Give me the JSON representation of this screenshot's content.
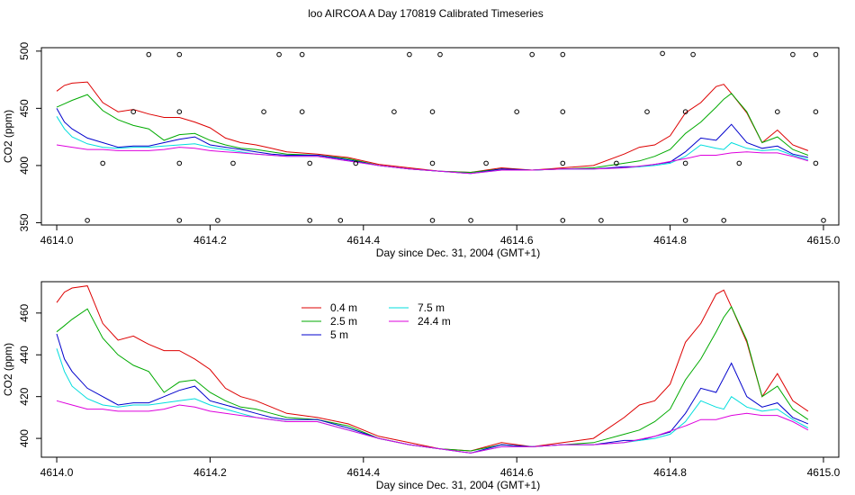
{
  "title": "loo AIRCOA A  Day 170819  Calibrated Timeseries",
  "colors": {
    "0.4 m": "#dd0000",
    "2.5 m": "#00aa00",
    "5 m": "#0000cc",
    "7.5 m": "#00dddd",
    "24.4 m": "#dd00dd"
  },
  "chart_data": [
    {
      "type": "line",
      "xlabel": "Day since Dec. 31, 2004 (GMT+1)",
      "ylabel": "CO2 (ppm)",
      "xlim": [
        4613.98,
        4615.02
      ],
      "ylim": [
        348,
        503
      ],
      "xticks": [
        "4614.0",
        "4614.2",
        "4614.4",
        "4614.6",
        "4614.8",
        "4615.0"
      ],
      "yticks": [
        "350",
        "400",
        "450",
        "500"
      ],
      "series": [
        {
          "name": "0.4 m",
          "x": [
            4614.0,
            4614.01,
            4614.02,
            4614.04,
            4614.06,
            4614.08,
            4614.1,
            4614.12,
            4614.14,
            4614.16,
            4614.18,
            4614.2,
            4614.22,
            4614.24,
            4614.26,
            4614.28,
            4614.3,
            4614.34,
            4614.38,
            4614.42,
            4614.46,
            4614.5,
            4614.54,
            4614.58,
            4614.62,
            4614.66,
            4614.7,
            4614.74,
            4614.76,
            4614.78,
            4614.8,
            4614.82,
            4614.84,
            4614.86,
            4614.87,
            4614.88,
            4614.9,
            4614.92,
            4614.94,
            4614.96,
            4614.98
          ],
          "y": [
            465,
            470,
            472,
            473,
            455,
            447,
            449,
            445,
            442,
            442,
            438,
            433,
            424,
            420,
            418,
            415,
            412,
            410,
            407,
            401,
            398,
            395,
            394,
            398,
            396,
            398,
            400,
            410,
            416,
            418,
            426,
            446,
            455,
            469,
            471,
            463,
            446,
            420,
            431,
            418,
            413
          ]
        },
        {
          "name": "2.5 m",
          "x": [
            4614.0,
            4614.01,
            4614.02,
            4614.04,
            4614.06,
            4614.08,
            4614.1,
            4614.12,
            4614.14,
            4614.16,
            4614.18,
            4614.2,
            4614.22,
            4614.24,
            4614.26,
            4614.28,
            4614.3,
            4614.34,
            4614.38,
            4614.42,
            4614.46,
            4614.5,
            4614.54,
            4614.58,
            4614.62,
            4614.66,
            4614.7,
            4614.74,
            4614.76,
            4614.78,
            4614.8,
            4614.82,
            4614.84,
            4614.86,
            4614.87,
            4614.88,
            4614.9,
            4614.92,
            4614.94,
            4614.96,
            4614.98
          ],
          "y": [
            451,
            454,
            457,
            462,
            448,
            440,
            435,
            432,
            422,
            427,
            428,
            422,
            418,
            415,
            414,
            412,
            410,
            409,
            406,
            400,
            397,
            395,
            394,
            397,
            396,
            397,
            398,
            402,
            404,
            408,
            414,
            428,
            438,
            451,
            458,
            463,
            447,
            420,
            425,
            414,
            409
          ]
        },
        {
          "name": "5 m",
          "x": [
            4614.0,
            4614.01,
            4614.02,
            4614.04,
            4614.06,
            4614.08,
            4614.1,
            4614.12,
            4614.14,
            4614.16,
            4614.18,
            4614.2,
            4614.22,
            4614.24,
            4614.26,
            4614.28,
            4614.3,
            4614.34,
            4614.38,
            4614.42,
            4614.46,
            4614.5,
            4614.54,
            4614.58,
            4614.62,
            4614.66,
            4614.7,
            4614.74,
            4614.76,
            4614.78,
            4614.8,
            4614.82,
            4614.84,
            4614.86,
            4614.87,
            4614.88,
            4614.9,
            4614.92,
            4614.94,
            4614.96,
            4614.98
          ],
          "y": [
            450,
            438,
            432,
            424,
            420,
            416,
            417,
            417,
            420,
            423,
            425,
            418,
            416,
            414,
            412,
            410,
            409,
            409,
            405,
            400,
            397,
            395,
            393,
            397,
            396,
            397,
            397,
            399,
            399,
            401,
            403,
            412,
            424,
            422,
            429,
            436,
            420,
            415,
            417,
            410,
            407
          ]
        },
        {
          "name": "7.5 m",
          "x": [
            4614.0,
            4614.01,
            4614.02,
            4614.04,
            4614.06,
            4614.08,
            4614.1,
            4614.12,
            4614.14,
            4614.16,
            4614.18,
            4614.2,
            4614.22,
            4614.24,
            4614.26,
            4614.28,
            4614.3,
            4614.34,
            4614.38,
            4614.42,
            4614.46,
            4614.5,
            4614.54,
            4614.58,
            4614.62,
            4614.66,
            4614.7,
            4614.74,
            4614.76,
            4614.78,
            4614.8,
            4614.82,
            4614.84,
            4614.86,
            4614.87,
            4614.88,
            4614.9,
            4614.92,
            4614.94,
            4614.96,
            4614.98
          ],
          "y": [
            443,
            432,
            425,
            419,
            416,
            415,
            416,
            416,
            417,
            418,
            419,
            416,
            414,
            412,
            410,
            409,
            408,
            408,
            404,
            400,
            397,
            395,
            393,
            396,
            396,
            397,
            397,
            398,
            399,
            400,
            402,
            408,
            418,
            415,
            414,
            420,
            415,
            413,
            414,
            409,
            405
          ]
        },
        {
          "name": "24.4 m",
          "x": [
            4614.0,
            4614.02,
            4614.04,
            4614.06,
            4614.08,
            4614.1,
            4614.12,
            4614.14,
            4614.16,
            4614.18,
            4614.2,
            4614.22,
            4614.24,
            4614.26,
            4614.28,
            4614.3,
            4614.34,
            4614.38,
            4614.42,
            4614.46,
            4614.5,
            4614.54,
            4614.58,
            4614.62,
            4614.66,
            4614.7,
            4614.74,
            4614.78,
            4614.82,
            4614.84,
            4614.86,
            4614.88,
            4614.9,
            4614.92,
            4614.94,
            4614.96,
            4614.98
          ],
          "y": [
            418,
            416,
            414,
            414,
            413,
            413,
            413,
            414,
            416,
            415,
            413,
            412,
            411,
            410,
            409,
            408,
            408,
            404,
            400,
            397,
            395,
            393,
            396,
            396,
            397,
            397,
            398,
            401,
            406,
            409,
            409,
            411,
            412,
            411,
            411,
            408,
            404
          ]
        }
      ],
      "markers": {
        "name": "out-of-range points",
        "x": [
          4614.04,
          4614.06,
          4614.1,
          4614.12,
          4614.16,
          4614.16,
          4614.16,
          4614.16,
          4614.21,
          4614.23,
          4614.27,
          4614.29,
          4614.32,
          4614.32,
          4614.33,
          4614.33,
          4614.37,
          4614.39,
          4614.44,
          4614.46,
          4614.49,
          4614.49,
          4614.49,
          4614.5,
          4614.54,
          4614.56,
          4614.6,
          4614.62,
          4614.66,
          4614.66,
          4614.66,
          4614.66,
          4614.71,
          4614.73,
          4614.77,
          4614.79,
          4614.82,
          4614.82,
          4614.82,
          4614.83,
          4614.87,
          4614.89,
          4614.94,
          4614.96,
          4614.99,
          4614.99,
          4614.99,
          4615.0
        ],
        "y": [
          352,
          402,
          447,
          497,
          352,
          402,
          447,
          497,
          352,
          402,
          447,
          497,
          497,
          447,
          402,
          352,
          352,
          402,
          447,
          497,
          352,
          402,
          447,
          497,
          352,
          402,
          447,
          497,
          352,
          402,
          447,
          497,
          352,
          402,
          447,
          498,
          352,
          402,
          447,
          497,
          352,
          402,
          447,
          497,
          497,
          447,
          402,
          352
        ]
      }
    },
    {
      "type": "line",
      "xlabel": "Day since Dec. 31, 2004 (GMT+1)",
      "ylabel": "CO2 (ppm)",
      "xlim": [
        4613.98,
        4615.02
      ],
      "ylim": [
        391,
        475
      ],
      "xticks": [
        "4614.0",
        "4614.2",
        "4614.4",
        "4614.6",
        "4614.8",
        "4615.0"
      ],
      "yticks": [
        "400",
        "420",
        "440",
        "460"
      ],
      "legend": {
        "placement": "top-center",
        "entries": [
          "0.4 m",
          "2.5 m",
          "5 m",
          "7.5 m",
          "24.4 m"
        ]
      },
      "series": [
        {
          "name": "0.4 m",
          "x": [
            4614.0,
            4614.01,
            4614.02,
            4614.04,
            4614.06,
            4614.08,
            4614.1,
            4614.12,
            4614.14,
            4614.16,
            4614.18,
            4614.2,
            4614.22,
            4614.24,
            4614.26,
            4614.28,
            4614.3,
            4614.34,
            4614.38,
            4614.42,
            4614.46,
            4614.5,
            4614.54,
            4614.58,
            4614.62,
            4614.66,
            4614.7,
            4614.74,
            4614.76,
            4614.78,
            4614.8,
            4614.82,
            4614.84,
            4614.86,
            4614.87,
            4614.88,
            4614.9,
            4614.92,
            4614.94,
            4614.96,
            4614.98
          ],
          "y": [
            465,
            470,
            472,
            473,
            455,
            447,
            449,
            445,
            442,
            442,
            438,
            433,
            424,
            420,
            418,
            415,
            412,
            410,
            407,
            401,
            398,
            395,
            394,
            398,
            396,
            398,
            400,
            410,
            416,
            418,
            426,
            446,
            455,
            469,
            471,
            463,
            446,
            420,
            431,
            418,
            413
          ]
        },
        {
          "name": "2.5 m",
          "x": [
            4614.0,
            4614.01,
            4614.02,
            4614.04,
            4614.06,
            4614.08,
            4614.1,
            4614.12,
            4614.14,
            4614.16,
            4614.18,
            4614.2,
            4614.22,
            4614.24,
            4614.26,
            4614.28,
            4614.3,
            4614.34,
            4614.38,
            4614.42,
            4614.46,
            4614.5,
            4614.54,
            4614.58,
            4614.62,
            4614.66,
            4614.7,
            4614.74,
            4614.76,
            4614.78,
            4614.8,
            4614.82,
            4614.84,
            4614.86,
            4614.87,
            4614.88,
            4614.9,
            4614.92,
            4614.94,
            4614.96,
            4614.98
          ],
          "y": [
            451,
            454,
            457,
            462,
            448,
            440,
            435,
            432,
            422,
            427,
            428,
            422,
            418,
            415,
            414,
            412,
            410,
            409,
            406,
            400,
            397,
            395,
            394,
            397,
            396,
            397,
            398,
            402,
            404,
            408,
            414,
            428,
            438,
            451,
            458,
            463,
            447,
            420,
            425,
            414,
            409
          ]
        },
        {
          "name": "5 m",
          "x": [
            4614.0,
            4614.01,
            4614.02,
            4614.04,
            4614.06,
            4614.08,
            4614.1,
            4614.12,
            4614.14,
            4614.16,
            4614.18,
            4614.2,
            4614.22,
            4614.24,
            4614.26,
            4614.28,
            4614.3,
            4614.34,
            4614.38,
            4614.42,
            4614.46,
            4614.5,
            4614.54,
            4614.58,
            4614.62,
            4614.66,
            4614.7,
            4614.74,
            4614.76,
            4614.78,
            4614.8,
            4614.82,
            4614.84,
            4614.86,
            4614.87,
            4614.88,
            4614.9,
            4614.92,
            4614.94,
            4614.96,
            4614.98
          ],
          "y": [
            450,
            438,
            432,
            424,
            420,
            416,
            417,
            417,
            420,
            423,
            425,
            418,
            416,
            414,
            412,
            410,
            409,
            409,
            405,
            400,
            397,
            395,
            393,
            397,
            396,
            397,
            397,
            399,
            399,
            401,
            403,
            412,
            424,
            422,
            429,
            436,
            420,
            415,
            417,
            410,
            407
          ]
        },
        {
          "name": "7.5 m",
          "x": [
            4614.0,
            4614.01,
            4614.02,
            4614.04,
            4614.06,
            4614.08,
            4614.1,
            4614.12,
            4614.14,
            4614.16,
            4614.18,
            4614.2,
            4614.22,
            4614.24,
            4614.26,
            4614.28,
            4614.3,
            4614.34,
            4614.38,
            4614.42,
            4614.46,
            4614.5,
            4614.54,
            4614.58,
            4614.62,
            4614.66,
            4614.7,
            4614.74,
            4614.76,
            4614.78,
            4614.8,
            4614.82,
            4614.84,
            4614.86,
            4614.87,
            4614.88,
            4614.9,
            4614.92,
            4614.94,
            4614.96,
            4614.98
          ],
          "y": [
            443,
            432,
            425,
            419,
            416,
            415,
            416,
            416,
            417,
            418,
            419,
            416,
            414,
            412,
            410,
            409,
            408,
            408,
            404,
            400,
            397,
            395,
            393,
            396,
            396,
            397,
            397,
            398,
            399,
            400,
            402,
            408,
            418,
            415,
            414,
            420,
            415,
            413,
            414,
            409,
            405
          ]
        },
        {
          "name": "24.4 m",
          "x": [
            4614.0,
            4614.02,
            4614.04,
            4614.06,
            4614.08,
            4614.1,
            4614.12,
            4614.14,
            4614.16,
            4614.18,
            4614.2,
            4614.22,
            4614.24,
            4614.26,
            4614.28,
            4614.3,
            4614.34,
            4614.38,
            4614.42,
            4614.46,
            4614.5,
            4614.54,
            4614.58,
            4614.62,
            4614.66,
            4614.7,
            4614.74,
            4614.78,
            4614.82,
            4614.84,
            4614.86,
            4614.88,
            4614.9,
            4614.92,
            4614.94,
            4614.96,
            4614.98
          ],
          "y": [
            418,
            416,
            414,
            414,
            413,
            413,
            413,
            414,
            416,
            415,
            413,
            412,
            411,
            410,
            409,
            408,
            408,
            404,
            400,
            397,
            395,
            393,
            396,
            396,
            397,
            397,
            398,
            401,
            406,
            409,
            409,
            411,
            412,
            411,
            411,
            408,
            404
          ]
        }
      ]
    }
  ]
}
